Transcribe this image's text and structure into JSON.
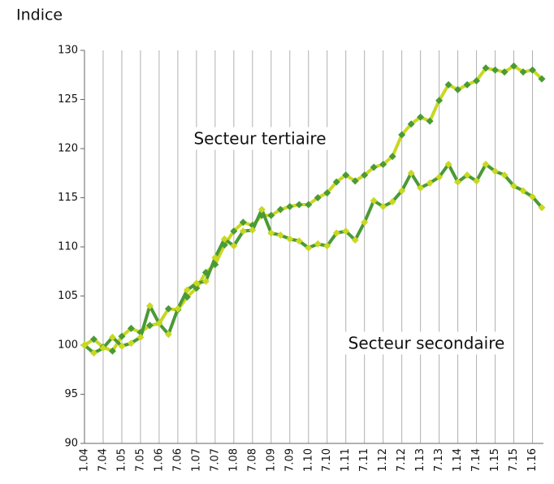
{
  "chart_data": {
    "type": "line",
    "y_axis_label": "Indice",
    "categories": [
      "1.04",
      null,
      "7.04",
      null,
      "1.05",
      null,
      "7.05",
      null,
      "1.06",
      null,
      "7.06",
      null,
      "1.07",
      null,
      "7.07",
      null,
      "1.08",
      null,
      "7.08",
      null,
      "1.09",
      null,
      "7.09",
      null,
      "1.10",
      null,
      "7.10",
      null,
      "1.11",
      null,
      "7.11",
      null,
      "1.12",
      null,
      "7.12",
      null,
      "1.13",
      null,
      "7.13",
      null,
      "1.14",
      null,
      "7.14",
      null,
      "1.15",
      null,
      "7.15",
      null,
      "1.16",
      null
    ],
    "series": [
      {
        "name": "Secteur tertiaire",
        "color": "#c9d820",
        "marker_color": "#4a9a36",
        "values": [
          100,
          100.6,
          99.8,
          99.4,
          100.9,
          101.7,
          101.3,
          102.0,
          102.2,
          103.7,
          103.6,
          104.9,
          105.8,
          107.4,
          108.2,
          110.2,
          111.6,
          112.5,
          112.2,
          113.2,
          113.2,
          113.8,
          114.1,
          114.3,
          114.3,
          115.0,
          115.5,
          116.6,
          117.3,
          116.7,
          117.3,
          118.1,
          118.4,
          119.2,
          121.4,
          122.5,
          123.2,
          122.8,
          124.9,
          126.5,
          126.0,
          126.5,
          126.9,
          128.2,
          128.0,
          127.8,
          128.4,
          127.8,
          128.0,
          127.1
        ]
      },
      {
        "name": "Secteur secondaire",
        "color": "#4a9a36",
        "marker_color": "#c9d820",
        "values": [
          100,
          99.2,
          99.7,
          100.8,
          99.9,
          100.2,
          100.8,
          104.0,
          102.2,
          101.1,
          103.7,
          105.6,
          106.3,
          106.5,
          108.9,
          110.8,
          110.1,
          111.6,
          111.7,
          113.8,
          111.4,
          111.2,
          110.8,
          110.6,
          109.9,
          110.3,
          110.1,
          111.4,
          111.6,
          110.7,
          112.5,
          114.7,
          114.1,
          114.6,
          115.7,
          117.5,
          116.0,
          116.5,
          117.1,
          118.4,
          116.6,
          117.3,
          116.7,
          118.4,
          117.7,
          117.3,
          116.2,
          115.7,
          115.1,
          114.0
        ]
      }
    ],
    "ylim": [
      90,
      130
    ],
    "yticks": [
      90,
      95,
      100,
      105,
      110,
      115,
      120,
      125,
      130
    ],
    "grid": "x"
  }
}
